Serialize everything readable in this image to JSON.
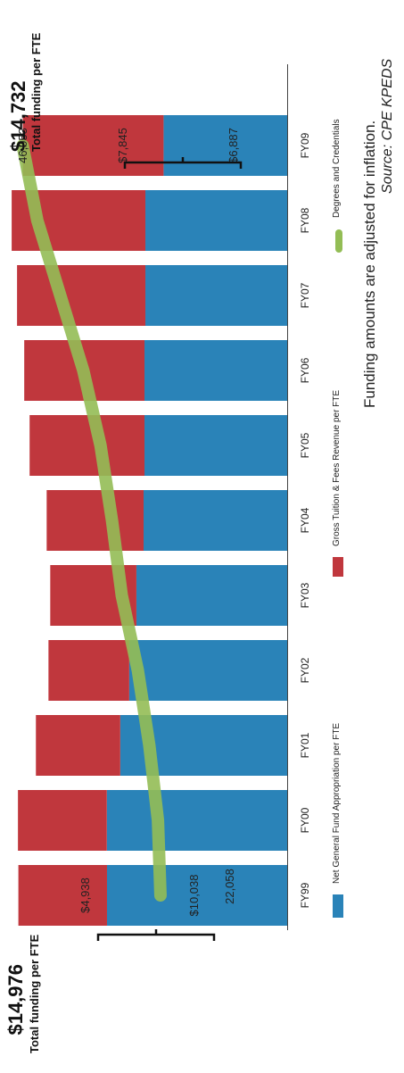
{
  "chart_data": {
    "type": "bar",
    "stacked": true,
    "categories": [
      "FY99",
      "FY00",
      "FY01",
      "FY02",
      "FY03",
      "FY04",
      "FY05",
      "FY06",
      "FY07",
      "FY08",
      "FY09"
    ],
    "series": [
      {
        "name": "Net General  Fund Appropriation per FTE",
        "values": [
          10038,
          10050,
          9300,
          8800,
          8400,
          8000,
          7950,
          7950,
          7900,
          7900,
          6887
        ],
        "color": "#2a83b8"
      },
      {
        "name": "Gross Tuition & Fees Revenue per FTE",
        "values": [
          4938,
          4950,
          4700,
          4500,
          4800,
          5400,
          6400,
          6700,
          7150,
          7450,
          7845
        ],
        "color": "#c0373d"
      }
    ],
    "line_series": {
      "name": "Degrees and Credentials",
      "values": [
        22058,
        22500,
        24000,
        26000,
        28800,
        30500,
        32500,
        35500,
        39500,
        43500,
        46053
      ],
      "color": "#93bd55"
    },
    "ylim": [
      0,
      16000
    ],
    "line_ylim": [
      0,
      50000
    ],
    "data_labels": {
      "first_tuition": "$4,938",
      "first_approp": "$10,038",
      "last_tuition": "$7,845",
      "last_approp": "$6,887",
      "first_degrees": "22,058",
      "last_degrees": "46,053"
    },
    "callouts": {
      "first_total": "$14,976",
      "last_total": "$14,732",
      "total_label": "Total funding per FTE"
    },
    "legend_position": "bottom",
    "grid": false
  },
  "footnote": {
    "line1": "Funding amounts are adjusted for inflation.",
    "line2": "Source: CPE KPEDS"
  }
}
